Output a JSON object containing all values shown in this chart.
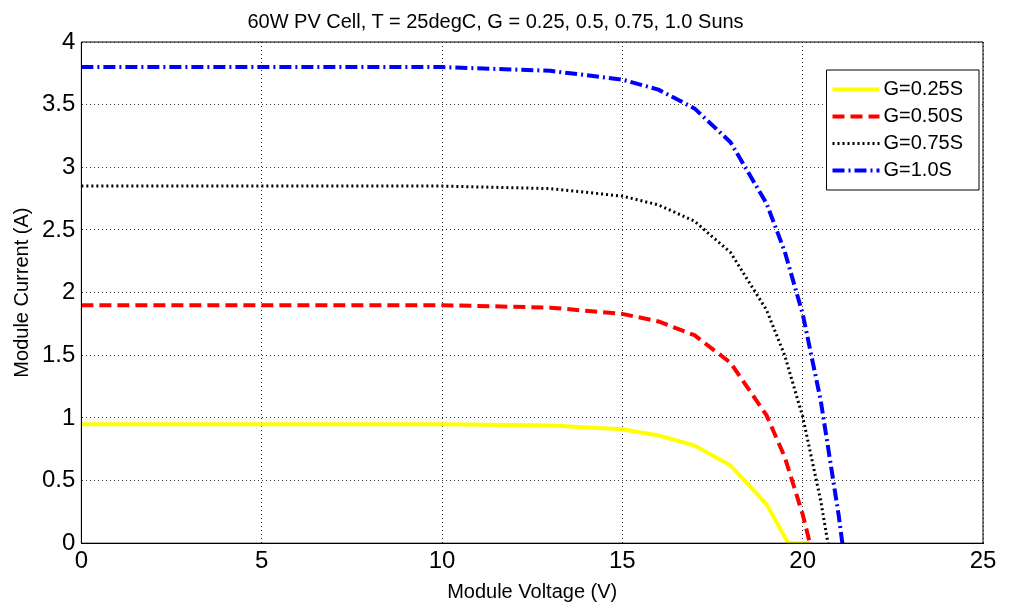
{
  "chart_data": {
    "type": "line",
    "title": "60W PV Cell, T = 25degC, G = 0.25, 0.5, 0.75, 1.0 Suns",
    "xlabel": "Module Voltage (V)",
    "ylabel": "Module Current (A)",
    "xlim": [
      0,
      25
    ],
    "xticks": [
      0,
      5,
      10,
      15,
      20,
      25
    ],
    "ylim": [
      0,
      4
    ],
    "yticks": [
      0,
      0.5,
      1,
      1.5,
      2,
      2.5,
      3,
      3.5,
      4
    ],
    "grid": true,
    "legend": "top right",
    "marker": "none",
    "series": [
      {
        "name": "G=0.25S",
        "color": "#ffff00",
        "line_style": "solid",
        "x": [
          0,
          5,
          10,
          13,
          15,
          16,
          17,
          18,
          19,
          19.6,
          20.2
        ],
        "values": [
          0.95,
          0.95,
          0.95,
          0.94,
          0.91,
          0.86,
          0.78,
          0.62,
          0.31,
          0,
          0
        ]
      },
      {
        "name": "G=0.50S",
        "color": "#ff0000",
        "line_style": "dashed",
        "x": [
          0,
          5,
          10,
          13,
          15,
          16,
          17,
          18,
          19,
          19.5,
          20,
          20.2
        ],
        "values": [
          1.9,
          1.9,
          1.9,
          1.88,
          1.83,
          1.77,
          1.66,
          1.44,
          1.02,
          0.69,
          0.23,
          0
        ]
      },
      {
        "name": "G=0.75S",
        "color": "#000000",
        "line_style": "dotted",
        "x": [
          0,
          5,
          10,
          13,
          15,
          16,
          17,
          18,
          19,
          19.5,
          20,
          20.5,
          20.7
        ],
        "values": [
          2.85,
          2.85,
          2.85,
          2.83,
          2.77,
          2.7,
          2.57,
          2.32,
          1.86,
          1.5,
          1.01,
          0.34,
          0
        ]
      },
      {
        "name": "G=1.0S",
        "color": "#0000ff",
        "line_style": "dashdot",
        "x": [
          0,
          5,
          10,
          13,
          15,
          16,
          17,
          18,
          19,
          19.5,
          20,
          20.5,
          21,
          21.1
        ],
        "values": [
          3.8,
          3.8,
          3.8,
          3.77,
          3.7,
          3.62,
          3.47,
          3.2,
          2.71,
          2.33,
          1.83,
          1.14,
          0.22,
          0
        ]
      }
    ]
  }
}
